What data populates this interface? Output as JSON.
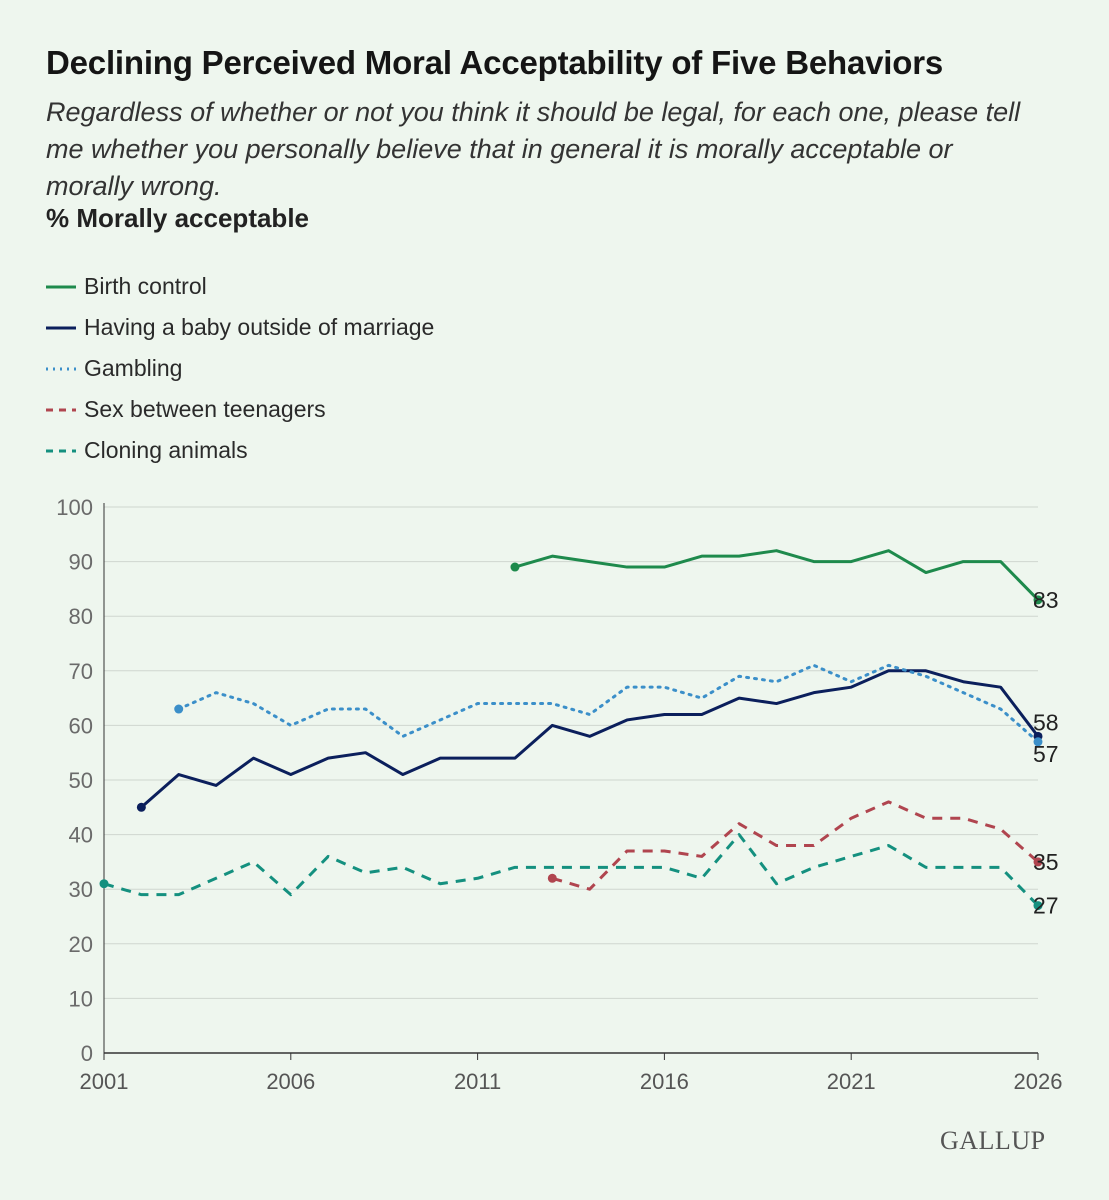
{
  "title": "Declining Perceived Moral Acceptability of Five Behaviors",
  "subtitle": "Regardless of whether or not you think it should be legal, for each one, please tell me whether you personally believe that in general it is morally acceptable or morally wrong.",
  "measure_label": "% Morally acceptable",
  "brand": "GALLUP",
  "chart_data": {
    "type": "line",
    "xlim": [
      2001,
      2026
    ],
    "ylim": [
      0,
      100
    ],
    "x_ticks": [
      2001,
      2006,
      2011,
      2016,
      2021,
      2026
    ],
    "y_ticks": [
      0,
      10,
      20,
      30,
      40,
      50,
      60,
      70,
      80,
      90,
      100
    ],
    "grid": true,
    "legend_position": "top-left",
    "series": [
      {
        "name": "Birth control",
        "color": "#1e8a4c",
        "style": "solid",
        "end_label": "83",
        "x": [
          2012,
          2013,
          2014,
          2015,
          2016,
          2017,
          2018,
          2019,
          2020,
          2021,
          2022,
          2023,
          2024,
          2025,
          2026
        ],
        "y": [
          89,
          91,
          90,
          89,
          89,
          91,
          91,
          92,
          90,
          90,
          92,
          88,
          90,
          90,
          83
        ]
      },
      {
        "name": "Having a baby outside of marriage",
        "color": "#0b1f5c",
        "style": "solid",
        "end_label": "58",
        "x": [
          2002,
          2003,
          2004,
          2005,
          2006,
          2007,
          2008,
          2009,
          2010,
          2011,
          2012,
          2013,
          2014,
          2015,
          2016,
          2017,
          2018,
          2019,
          2020,
          2021,
          2022,
          2023,
          2024,
          2025,
          2026
        ],
        "y": [
          45,
          51,
          49,
          54,
          51,
          54,
          55,
          51,
          54,
          54,
          54,
          60,
          58,
          61,
          62,
          62,
          65,
          64,
          66,
          67,
          70,
          70,
          68,
          67,
          58
        ]
      },
      {
        "name": "Gambling",
        "color": "#3b8fc9",
        "style": "dotted",
        "end_label": "57",
        "x": [
          2003,
          2004,
          2005,
          2006,
          2007,
          2008,
          2009,
          2010,
          2011,
          2012,
          2013,
          2014,
          2015,
          2016,
          2017,
          2018,
          2019,
          2020,
          2021,
          2022,
          2023,
          2024,
          2025,
          2026
        ],
        "y": [
          63,
          66,
          64,
          60,
          63,
          63,
          58,
          61,
          64,
          64,
          64,
          62,
          67,
          67,
          65,
          69,
          68,
          71,
          68,
          71,
          69,
          66,
          63,
          57
        ]
      },
      {
        "name": "Sex between teenagers",
        "color": "#b0454f",
        "style": "dashed",
        "end_label": "35",
        "x": [
          2013,
          2014,
          2015,
          2016,
          2017,
          2018,
          2019,
          2020,
          2021,
          2022,
          2023,
          2024,
          2025,
          2026
        ],
        "y": [
          32,
          30,
          37,
          37,
          36,
          42,
          38,
          38,
          43,
          46,
          43,
          43,
          41,
          35
        ]
      },
      {
        "name": "Cloning animals",
        "color": "#14907f",
        "style": "dashed",
        "end_label": "27",
        "x": [
          2001,
          2002,
          2003,
          2004,
          2005,
          2006,
          2007,
          2008,
          2009,
          2010,
          2011,
          2012,
          2013,
          2014,
          2015,
          2016,
          2017,
          2018,
          2019,
          2020,
          2021,
          2022,
          2023,
          2024,
          2025,
          2026
        ],
        "y": [
          31,
          29,
          29,
          32,
          35,
          29,
          36,
          33,
          34,
          31,
          32,
          34,
          34,
          34,
          34,
          34,
          32,
          40,
          31,
          34,
          36,
          38,
          34,
          34,
          34,
          27
        ]
      }
    ]
  }
}
